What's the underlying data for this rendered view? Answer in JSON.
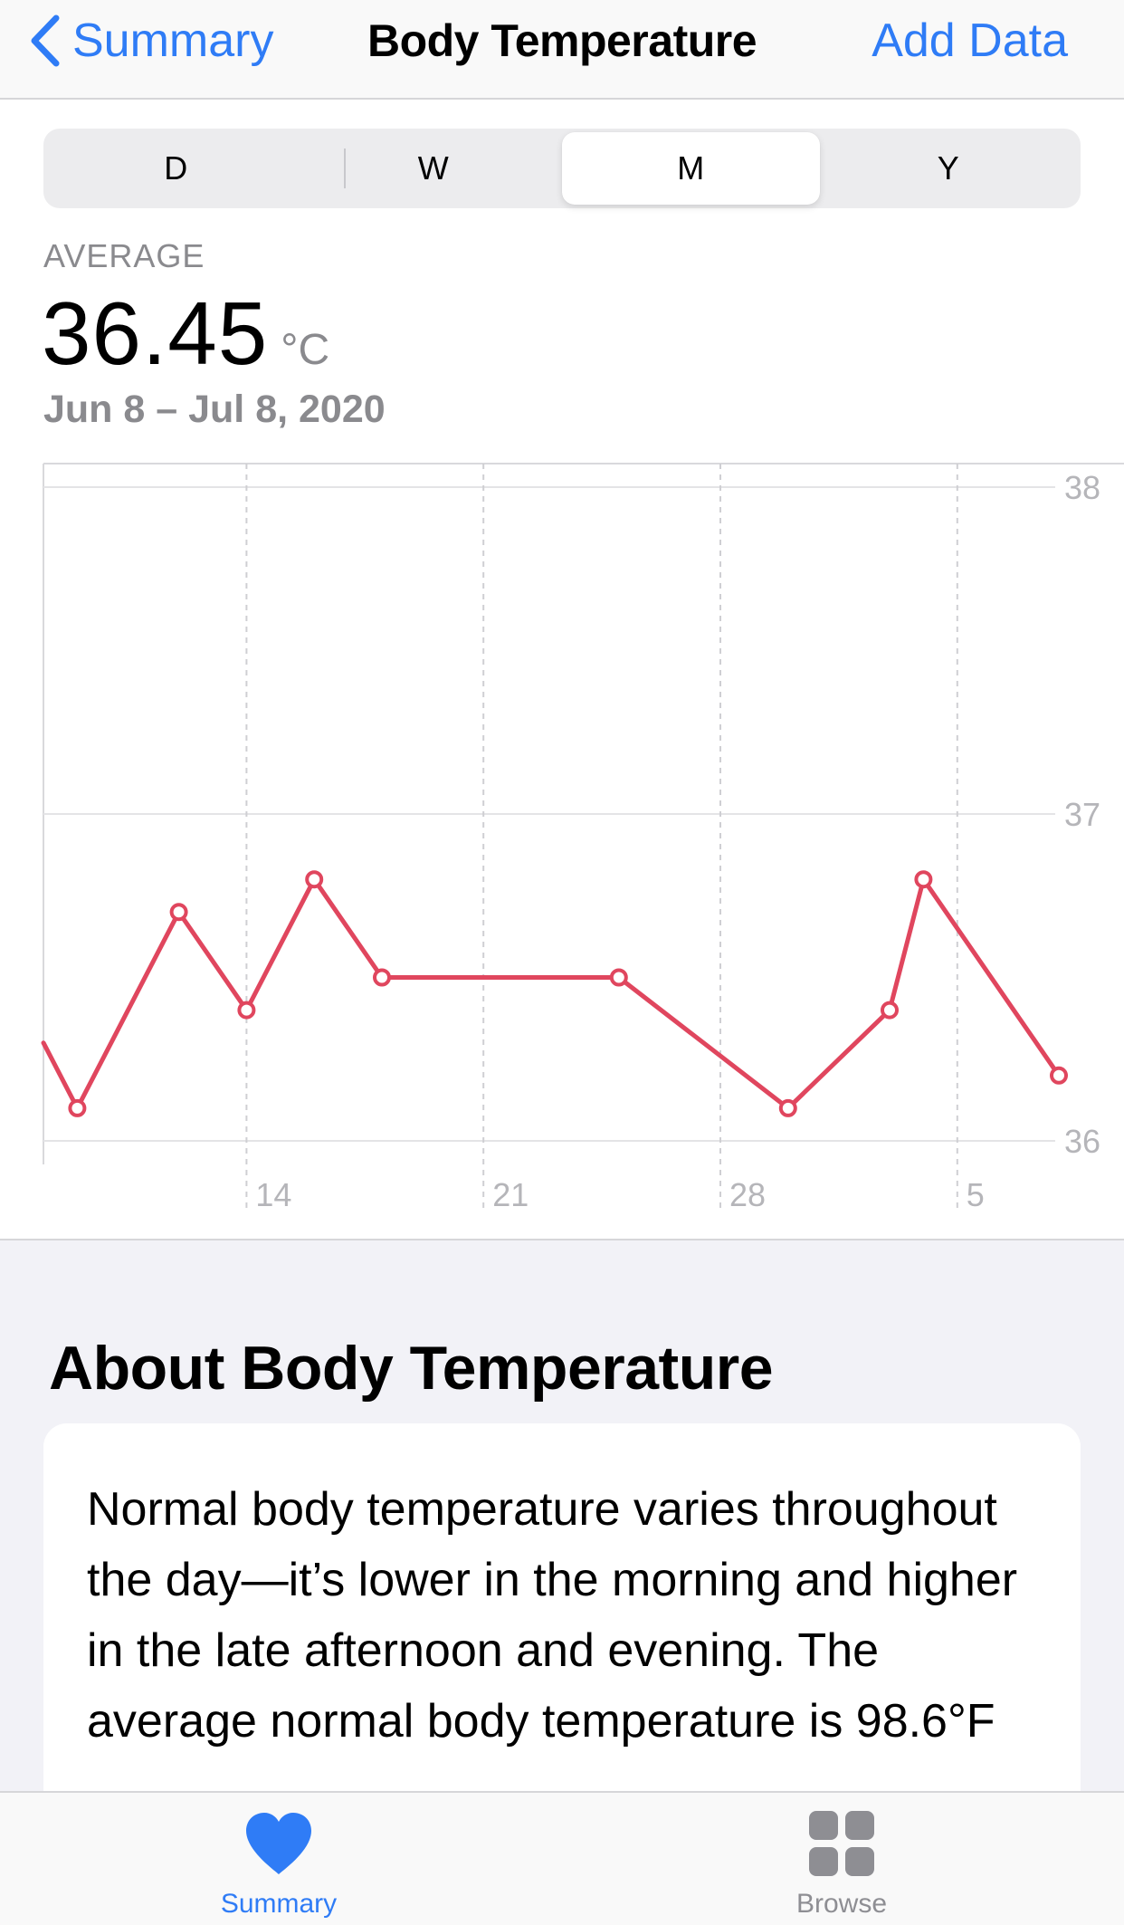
{
  "nav": {
    "back_label": "Summary",
    "title": "Body Temperature",
    "action_label": "Add Data"
  },
  "segments": [
    {
      "label": "D",
      "selected": false
    },
    {
      "label": "W",
      "selected": false
    },
    {
      "label": "M",
      "selected": true
    },
    {
      "label": "Y",
      "selected": false
    }
  ],
  "summary": {
    "label": "AVERAGE",
    "value": "36.45",
    "unit": "°C",
    "date_range": "Jun 8 – Jul 8, 2020"
  },
  "chart_data": {
    "type": "line",
    "x_axis": "date",
    "x_range": [
      "2020-06-08",
      "2020-07-08"
    ],
    "y_range": [
      36,
      38
    ],
    "y_ticks": [
      "36",
      "37",
      "38"
    ],
    "x_ticks": [
      {
        "date": "2020-06-14",
        "label": "14"
      },
      {
        "date": "2020-06-21",
        "label": "21"
      },
      {
        "date": "2020-06-28",
        "label": "28"
      },
      {
        "date": "2020-07-05",
        "label": "5"
      }
    ],
    "grid": true,
    "line_color": "#e0465e",
    "leading_value": 36.3,
    "points": [
      {
        "date": "2020-06-09",
        "value": 36.1
      },
      {
        "date": "2020-06-12",
        "value": 36.7
      },
      {
        "date": "2020-06-14",
        "value": 36.4
      },
      {
        "date": "2020-06-16",
        "value": 36.8
      },
      {
        "date": "2020-06-18",
        "value": 36.5
      },
      {
        "date": "2020-06-25",
        "value": 36.5
      },
      {
        "date": "2020-06-30",
        "value": 36.1
      },
      {
        "date": "2020-07-03",
        "value": 36.4
      },
      {
        "date": "2020-07-04",
        "value": 36.8
      },
      {
        "date": "2020-07-08",
        "value": 36.2
      }
    ]
  },
  "about": {
    "title": "About Body Temperature",
    "text": "Normal body temperature varies throughout the day—it’s lower in the morning and higher in the late afternoon and evening. The average normal body temperature is 98.6°F"
  },
  "tabbar": {
    "items": [
      {
        "label": "Summary",
        "icon": "heart-icon",
        "active": true
      },
      {
        "label": "Browse",
        "icon": "grid-icon",
        "active": false
      }
    ],
    "active_color": "#2f7cf6",
    "inactive_color": "#8e8e93"
  }
}
